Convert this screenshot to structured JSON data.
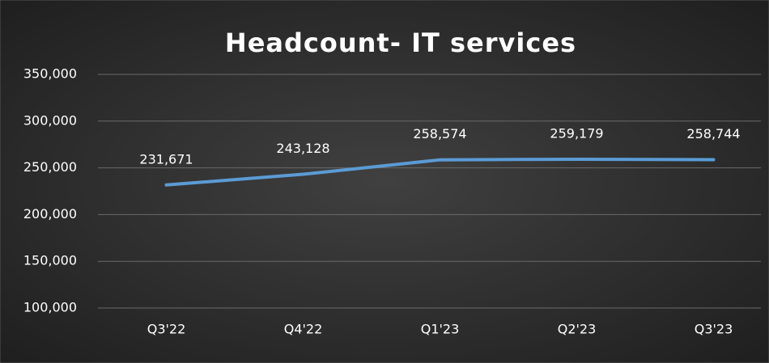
{
  "chart_data": {
    "type": "line",
    "title": "Headcount- IT services",
    "categories": [
      "Q3'22",
      "Q4'22",
      "Q1'23",
      "Q2'23",
      "Q3'23"
    ],
    "series": [
      {
        "name": "Headcount",
        "color": "#5b9bd5",
        "values": [
          231671,
          243128,
          258574,
          259179,
          258744
        ],
        "value_labels": [
          "231,671",
          "243,128",
          "258,574",
          "259,179",
          "258,744"
        ]
      }
    ],
    "ylim": [
      100000,
      350000
    ],
    "yticks": [
      {
        "value": 100000,
        "label": "100,000"
      },
      {
        "value": 150000,
        "label": "150,000"
      },
      {
        "value": 200000,
        "label": "200,000"
      },
      {
        "value": 250000,
        "label": "250,000"
      },
      {
        "value": 300000,
        "label": "300,000"
      },
      {
        "value": 350000,
        "label": "350,000"
      }
    ],
    "grid": true
  }
}
